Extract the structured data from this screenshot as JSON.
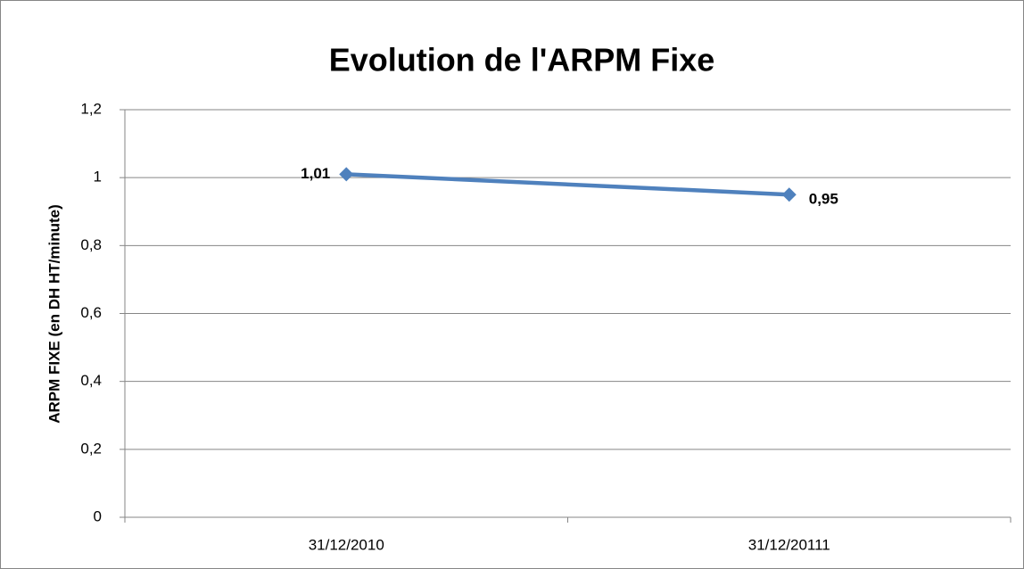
{
  "chart_data": {
    "type": "line",
    "title": "Evolution de l'ARPM Fixe",
    "y_label": "ARPM FIXE (en DH HT/minute)",
    "categories": [
      "31/12/2010",
      "31/12/20111"
    ],
    "series": [
      {
        "name": "ARPM Fixe",
        "color": "#4f81bd",
        "values": [
          1.01,
          0.95
        ],
        "value_labels": [
          "1,01",
          "0,95"
        ]
      }
    ],
    "ylim": [
      0,
      1.2
    ],
    "yticks": [
      0,
      {
        "value": 0.2,
        "label": "0,2"
      },
      {
        "value": 0.4,
        "label": "0,4"
      },
      {
        "value": 0.6,
        "label": "0,6"
      },
      {
        "value": 0.8,
        "label": "0,8"
      },
      1,
      {
        "value": 1.2,
        "label": "1,2"
      }
    ],
    "grid": true
  }
}
